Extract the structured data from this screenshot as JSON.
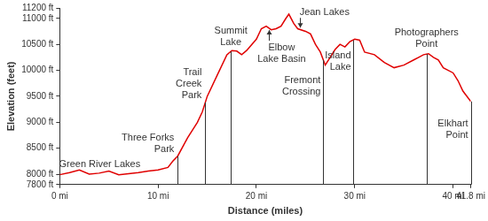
{
  "chart_data": {
    "type": "line",
    "x_label": "Distance (miles)",
    "y_label": "Elevation (feet)",
    "color": "#e00000",
    "grid": false,
    "x": [
      0,
      1,
      2,
      3,
      4,
      5,
      6,
      7,
      8,
      9,
      10,
      11,
      11.5,
      12,
      13,
      14,
      14.5,
      15,
      16,
      17,
      17.5,
      18,
      18.5,
      19,
      20,
      20.5,
      21,
      21.5,
      22,
      22.5,
      23,
      23.3,
      23.8,
      24.2,
      25,
      25.5,
      26,
      26.5,
      27,
      27.5,
      28,
      28.5,
      29,
      29.5,
      30,
      30.5,
      31,
      32,
      33,
      34,
      35,
      36,
      36.5,
      37,
      37.5,
      38,
      38.5,
      39,
      40,
      40.5,
      41,
      41.8
    ],
    "values": [
      7990,
      8030,
      8080,
      8000,
      8020,
      8060,
      7990,
      8010,
      8030,
      8060,
      8080,
      8130,
      8250,
      8350,
      8700,
      9000,
      9200,
      9500,
      9900,
      10300,
      10380,
      10370,
      10300,
      10380,
      10600,
      10800,
      10850,
      10780,
      10800,
      10850,
      11000,
      11080,
      10900,
      10800,
      10750,
      10700,
      10500,
      10350,
      10100,
      10250,
      10400,
      10500,
      10450,
      10550,
      10600,
      10580,
      10350,
      10300,
      10150,
      10050,
      10100,
      10200,
      10250,
      10300,
      10320,
      10250,
      10200,
      10050,
      9950,
      9800,
      9600,
      9400
    ],
    "xlim": [
      0,
      41.8
    ],
    "xticks": [
      {
        "value": 0,
        "label": "0 mi"
      },
      {
        "value": 10,
        "label": "10 mi"
      },
      {
        "value": 20,
        "label": "20 mi"
      },
      {
        "value": 30,
        "label": "30 mi"
      },
      {
        "value": 40,
        "label": "40 mi"
      },
      {
        "value": 41.8,
        "label": "41.8 mi"
      }
    ],
    "ylim": [
      7800,
      11200
    ],
    "yticks": [
      {
        "value": 7800,
        "label": "7800 ft"
      },
      {
        "value": 8000,
        "label": "8000 ft"
      },
      {
        "value": 8500,
        "label": "8500 ft"
      },
      {
        "value": 9000,
        "label": "9000 ft"
      },
      {
        "value": 9500,
        "label": "9500 ft"
      },
      {
        "value": 10000,
        "label": "10000 ft"
      },
      {
        "value": 10500,
        "label": "10500 ft"
      },
      {
        "value": 11000,
        "label": "11000 ft"
      },
      {
        "value": 11200,
        "label": "11200 ft"
      }
    ],
    "annotations": [
      {
        "text": "Green River Lakes",
        "x": 0
      },
      {
        "text": "Three Forks Park",
        "x": 12
      },
      {
        "text": "Trail Creek Park",
        "x": 14.8
      },
      {
        "text": "Summit Lake",
        "x": 17.4
      },
      {
        "text": "Elbow Lake Basin",
        "x": 21.3
      },
      {
        "text": "Jean Lakes",
        "x": 24.4
      },
      {
        "text": "Fremont Crossing",
        "x": 26.8
      },
      {
        "text": "Island Lake",
        "x": 29.8
      },
      {
        "text": "Photographers Point",
        "x": 37.3
      },
      {
        "text": "Elkhart Point",
        "x": 41.8
      }
    ]
  }
}
